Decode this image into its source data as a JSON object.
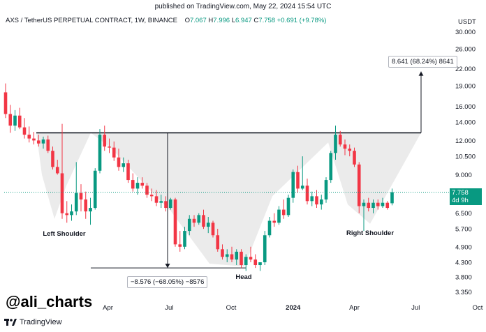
{
  "header": {
    "published": "published on TradingView.com, May 22, 2024 15:54 UTC",
    "symbol": "AXS / TetherUS PERPETUAL CONTRACT, 1W, BINANCE",
    "ohlc": [
      {
        "label": "O",
        "value": "7.067"
      },
      {
        "label": "H",
        "value": "7.996"
      },
      {
        "label": "L",
        "value": "6.947"
      },
      {
        "label": "C",
        "value": "7.758"
      }
    ],
    "change": "+0.691 (+9.78%)"
  },
  "price_tag": {
    "price": "7.758",
    "countdown": "4d 9h"
  },
  "measure_up": "8.641 (68.24%) 8641",
  "measure_down": "−8.576 (−68.05%) −8576",
  "watermark": "@ali_charts",
  "logo_text": "TradingView",
  "colors": {
    "up": "#089981",
    "down": "#f23645",
    "pattern_fill": "#e8e8e8",
    "neckline": "#131722"
  },
  "chart_data": {
    "type": "candlestick",
    "title": "",
    "currency": "USDT",
    "y_scale": "log",
    "ylim": [
      3.2,
      32
    ],
    "y_ticks": [
      "30.000",
      "26.000",
      "22.000",
      "19.000",
      "16.000",
      "14.000",
      "12.000",
      "10.500",
      "9.000",
      "7.700",
      "6.500",
      "5.700",
      "4.900",
      "4.300",
      "3.800",
      "3.350"
    ],
    "x_ticks": [
      {
        "label": "Apr",
        "date": "2023-04-01"
      },
      {
        "label": "Jul",
        "date": "2023-07-01"
      },
      {
        "label": "Oct",
        "date": "2023-10-01"
      },
      {
        "label": "2024",
        "date": "2024-01-01"
      },
      {
        "label": "Apr",
        "date": "2024-04-01"
      },
      {
        "label": "Jul",
        "date": "2024-07-01"
      },
      {
        "label": "Oct",
        "date": "2024-10-01"
      }
    ],
    "x_start": "2022-10-31",
    "candles": [
      [
        18.0,
        19.4,
        14.5,
        15.0
      ],
      [
        15.0,
        16.2,
        12.8,
        13.6
      ],
      [
        13.6,
        15.5,
        13.0,
        14.8
      ],
      [
        14.8,
        15.8,
        13.2,
        13.4
      ],
      [
        13.4,
        14.5,
        12.2,
        12.6
      ],
      [
        12.6,
        13.5,
        11.8,
        12.2
      ],
      [
        12.2,
        12.9,
        11.6,
        12.0
      ],
      [
        12.0,
        12.6,
        11.4,
        11.7
      ],
      [
        11.7,
        12.4,
        11.2,
        12.1
      ],
      [
        12.1,
        12.5,
        10.8,
        11.0
      ],
      [
        11.0,
        11.4,
        9.4,
        9.6
      ],
      [
        9.6,
        10.2,
        9.0,
        9.1
      ],
      [
        9.1,
        13.8,
        6.2,
        6.5
      ],
      [
        6.5,
        7.2,
        6.0,
        6.4
      ],
      [
        6.4,
        7.0,
        6.1,
        6.6
      ],
      [
        6.6,
        10.0,
        6.4,
        7.7
      ],
      [
        7.7,
        8.3,
        6.6,
        7.3
      ],
      [
        7.3,
        7.8,
        6.2,
        6.6
      ],
      [
        6.6,
        7.4,
        5.9,
        6.8
      ],
      [
        6.8,
        9.5,
        6.7,
        9.3
      ],
      [
        9.3,
        13.2,
        9.1,
        12.6
      ],
      [
        12.6,
        13.6,
        11.0,
        11.4
      ],
      [
        11.4,
        12.2,
        10.8,
        11.3
      ],
      [
        11.3,
        11.9,
        10.1,
        10.4
      ],
      [
        10.4,
        11.2,
        9.3,
        9.6
      ],
      [
        9.6,
        10.4,
        9.2,
        9.9
      ],
      [
        9.9,
        10.2,
        8.4,
        8.6
      ],
      [
        8.6,
        9.1,
        7.8,
        8.0
      ],
      [
        8.0,
        8.8,
        7.6,
        8.4
      ],
      [
        8.4,
        8.8,
        8.0,
        8.2
      ],
      [
        8.2,
        8.4,
        7.4,
        7.6
      ],
      [
        7.6,
        8.0,
        7.2,
        7.5
      ],
      [
        7.5,
        7.9,
        6.9,
        7.1
      ],
      [
        7.1,
        7.6,
        6.8,
        7.2
      ],
      [
        7.2,
        7.5,
        6.6,
        6.8
      ],
      [
        6.8,
        7.4,
        6.7,
        7.3
      ],
      [
        7.3,
        7.4,
        4.9,
        5.0
      ],
      [
        5.0,
        5.6,
        4.7,
        4.9
      ],
      [
        4.9,
        5.8,
        4.8,
        5.6
      ],
      [
        5.6,
        6.4,
        5.4,
        6.2
      ],
      [
        6.2,
        6.4,
        5.8,
        6.0
      ],
      [
        6.0,
        6.5,
        5.9,
        6.4
      ],
      [
        6.4,
        6.7,
        5.7,
        5.8
      ],
      [
        5.8,
        6.3,
        5.5,
        6.0
      ],
      [
        6.0,
        6.1,
        5.3,
        5.4
      ],
      [
        5.4,
        5.7,
        4.7,
        4.8
      ],
      [
        4.8,
        5.0,
        4.4,
        4.5
      ],
      [
        4.5,
        4.8,
        4.3,
        4.6
      ],
      [
        4.6,
        4.9,
        4.3,
        4.4
      ],
      [
        4.4,
        4.8,
        4.2,
        4.7
      ],
      [
        4.7,
        4.8,
        4.1,
        4.2
      ],
      [
        4.2,
        4.6,
        4.0,
        4.5
      ],
      [
        4.5,
        4.9,
        4.3,
        4.4
      ],
      [
        4.4,
        4.6,
        4.1,
        4.2
      ],
      [
        4.2,
        4.3,
        4.0,
        4.3
      ],
      [
        4.3,
        5.6,
        4.2,
        5.4
      ],
      [
        5.4,
        6.3,
        5.3,
        6.1
      ],
      [
        6.1,
        6.5,
        5.8,
        6.0
      ],
      [
        6.0,
        6.9,
        5.9,
        6.7
      ],
      [
        6.7,
        7.3,
        6.2,
        6.4
      ],
      [
        6.4,
        7.6,
        6.3,
        7.4
      ],
      [
        7.4,
        9.4,
        7.1,
        9.2
      ],
      [
        9.2,
        9.7,
        7.7,
        8.0
      ],
      [
        8.0,
        10.5,
        7.9,
        8.2
      ],
      [
        8.2,
        8.7,
        7.0,
        7.2
      ],
      [
        7.2,
        7.8,
        6.9,
        7.5
      ],
      [
        7.5,
        7.9,
        6.8,
        7.0
      ],
      [
        7.0,
        7.6,
        6.7,
        7.3
      ],
      [
        7.3,
        8.8,
        7.1,
        8.6
      ],
      [
        8.6,
        11.0,
        8.4,
        10.8
      ],
      [
        10.8,
        13.6,
        10.2,
        12.6
      ],
      [
        12.6,
        13.0,
        11.4,
        11.6
      ],
      [
        11.6,
        12.1,
        10.6,
        11.2
      ],
      [
        11.2,
        11.6,
        10.5,
        11.0
      ],
      [
        11.0,
        11.3,
        9.6,
        9.8
      ],
      [
        9.8,
        10.0,
        6.5,
        6.9
      ],
      [
        6.9,
        7.3,
        5.6,
        7.1
      ],
      [
        7.1,
        7.4,
        6.6,
        6.8
      ],
      [
        6.8,
        7.3,
        6.5,
        7.1
      ],
      [
        7.1,
        7.3,
        6.7,
        6.9
      ],
      [
        6.9,
        7.4,
        6.8,
        7.1
      ],
      [
        7.1,
        7.2,
        6.7,
        6.8
      ],
      [
        7.07,
        8.0,
        6.95,
        7.76
      ]
    ],
    "pattern": {
      "type": "inverse head and shoulders",
      "neckline": 12.8,
      "labels": [
        "Left Shoulder",
        "Head",
        "Right Shoulder"
      ],
      "measured_move_up": {
        "from": 12.8,
        "to": 21.44,
        "change": "8.641 (68.24%)"
      },
      "measured_move_down": {
        "from": 12.8,
        "to": 4.1,
        "change": "−8.576 (−68.05%)"
      }
    },
    "last_price": 7.758,
    "grid": false,
    "legend": "none"
  }
}
